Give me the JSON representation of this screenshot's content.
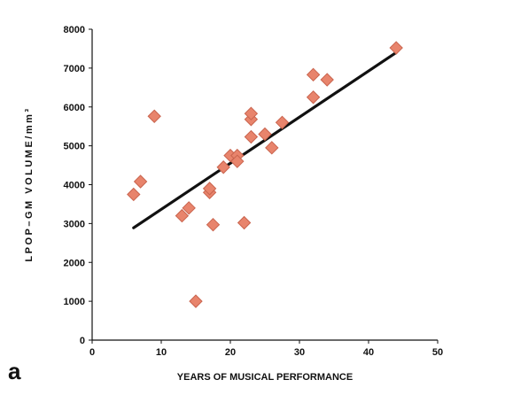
{
  "panel_label": "a",
  "chart_data": {
    "type": "scatter",
    "title": "",
    "xlabel": "YEARS OF MUSICAL PERFORMANCE",
    "ylabel": "LPOP–GM VOLUME/mm³",
    "xlim": [
      0,
      50
    ],
    "ylim": [
      0,
      8000
    ],
    "xticks": [
      0,
      10,
      20,
      30,
      40,
      50
    ],
    "yticks": [
      0,
      1000,
      2000,
      3000,
      4000,
      5000,
      6000,
      7000,
      8000
    ],
    "grid": false,
    "legend": "none",
    "marker": "diamond",
    "marker_color": "#e8846c",
    "marker_edge_color": "#c9644e",
    "line_color": "#111111",
    "points": [
      {
        "x": 6,
        "y": 3750
      },
      {
        "x": 7,
        "y": 4080
      },
      {
        "x": 9,
        "y": 5760
      },
      {
        "x": 13,
        "y": 3200
      },
      {
        "x": 14,
        "y": 3400
      },
      {
        "x": 15,
        "y": 1000
      },
      {
        "x": 17,
        "y": 3800
      },
      {
        "x": 17,
        "y": 3900
      },
      {
        "x": 17.5,
        "y": 2970
      },
      {
        "x": 19,
        "y": 4450
      },
      {
        "x": 20,
        "y": 4750
      },
      {
        "x": 21,
        "y": 4750
      },
      {
        "x": 21,
        "y": 4600
      },
      {
        "x": 22,
        "y": 3020
      },
      {
        "x": 23,
        "y": 5230
      },
      {
        "x": 23,
        "y": 5680
      },
      {
        "x": 23,
        "y": 5830
      },
      {
        "x": 25,
        "y": 5300
      },
      {
        "x": 26,
        "y": 4950
      },
      {
        "x": 27.5,
        "y": 5600
      },
      {
        "x": 32,
        "y": 6250
      },
      {
        "x": 32,
        "y": 6830
      },
      {
        "x": 34,
        "y": 6700
      },
      {
        "x": 44,
        "y": 7520
      }
    ],
    "trendline": {
      "x": [
        6,
        44
      ],
      "y": [
        2890,
        7400
      ]
    }
  }
}
